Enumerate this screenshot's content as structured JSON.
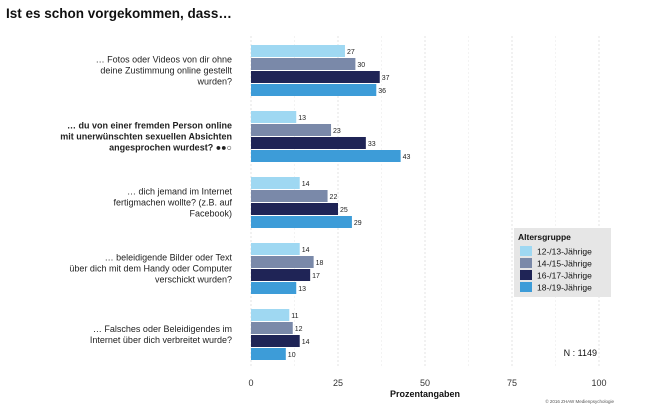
{
  "chart_data": {
    "type": "bar",
    "orientation": "horizontal",
    "title": "Ist es schon vorgekommen, dass…",
    "xlabel": "Prozentangaben",
    "ylabel": "",
    "xlim": [
      0,
      100
    ],
    "xticks": [
      0,
      25,
      50,
      75,
      100
    ],
    "grid": true,
    "categories": [
      [
        "… Fotos oder Videos von dir ohne",
        "deine Zustimmung online gestellt",
        "wurden?"
      ],
      [
        "… du von einer fremden Person online",
        "mit unerwünschten sexuellen Absichten",
        "angesprochen wurdest? ●●○"
      ],
      [
        "… dich jemand im Internet",
        "fertigmachen wollte? (z.B. auf",
        "Facebook)"
      ],
      [
        "… beleidigende Bilder oder Text",
        "über dich mit dem Handy oder Computer",
        "verschickt wurden?"
      ],
      [
        "… Falsches oder Beleidigendes im",
        "Internet über dich verbreitet wurde?"
      ]
    ],
    "bold_categories": [
      1
    ],
    "legend_title": "Altersgruppe",
    "legend_position": "right",
    "series": [
      {
        "name": "12-/13-Jährige",
        "color": "#9fd8f2",
        "values": [
          27,
          13,
          14,
          14,
          11
        ]
      },
      {
        "name": "14-/15-Jährige",
        "color": "#7a89a9",
        "values": [
          30,
          23,
          22,
          18,
          12
        ]
      },
      {
        "name": "16-/17-Jährige",
        "color": "#1f2456",
        "values": [
          37,
          33,
          25,
          17,
          14
        ]
      },
      {
        "name": "18-/19-Jährige",
        "color": "#3d9cd8",
        "values": [
          36,
          43,
          29,
          13,
          10
        ]
      }
    ],
    "note": "N : 1149",
    "copyright": "© 2016 ZHAW Medienpsychologie"
  }
}
